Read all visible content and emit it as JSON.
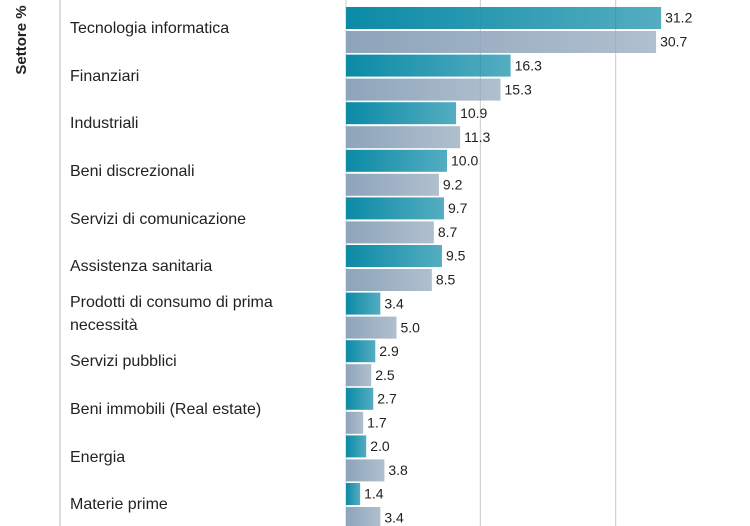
{
  "chart_data": {
    "type": "bar",
    "orientation": "horizontal",
    "axis_label": "Settore %",
    "categories": [
      "Tecnologia informatica",
      "Finanziari",
      "Industriali",
      "Beni discrezionali",
      "Servizi di comunicazione",
      "Assistenza sanitaria",
      "Prodotti di consumo di prima necessità",
      "Servizi pubblici",
      "Beni immobili (Real estate)",
      "Energia",
      "Materie prime"
    ],
    "series": [
      {
        "color": "#0b8aa6",
        "values": [
          31.2,
          16.3,
          10.9,
          10,
          9.7,
          9.5,
          3.4,
          2.9,
          2.7,
          2,
          1.4
        ],
        "value_labels": [
          "31.2",
          "16.3",
          "10.9",
          "10.0",
          "9.7",
          "9.5",
          "3.4",
          "2.9",
          "2.7",
          "2.0",
          "1.4"
        ]
      },
      {
        "color": "#8ea4ba",
        "values": [
          30.7,
          15.3,
          11.3,
          9.2,
          8.7,
          8.5,
          5,
          2.5,
          1.7,
          3.8,
          3.4
        ],
        "value_labels": [
          "30.7",
          "15.3",
          "11.3",
          "9.2",
          "8.7",
          "8.5",
          "5.0",
          "2.5",
          "1.7",
          "3.8",
          "3.4"
        ]
      }
    ],
    "xlim": [
      0,
      40
    ],
    "xticks": [
      0,
      13.3,
      26.7
    ],
    "grid": true
  }
}
